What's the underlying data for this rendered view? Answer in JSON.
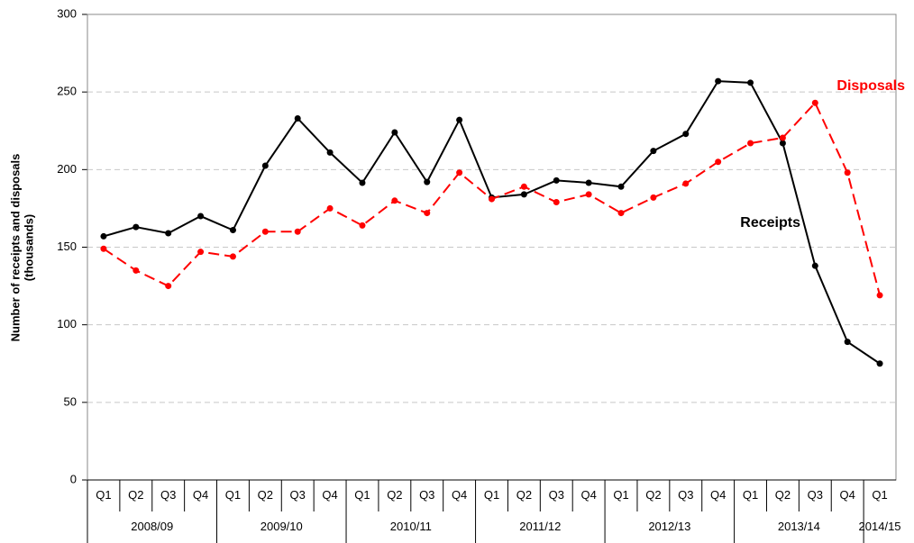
{
  "chart_data": {
    "type": "line",
    "ylabel": [
      "Number of receipts and disposals",
      "(thousands)"
    ],
    "groups": [
      {
        "label": "2008/09",
        "categories": [
          "Q1",
          "Q2",
          "Q3",
          "Q4"
        ]
      },
      {
        "label": "2009/10",
        "categories": [
          "Q1",
          "Q2",
          "Q3",
          "Q4"
        ]
      },
      {
        "label": "2010/11",
        "categories": [
          "Q1",
          "Q2",
          "Q3",
          "Q4"
        ]
      },
      {
        "label": "2011/12",
        "categories": [
          "Q1",
          "Q2",
          "Q3",
          "Q4"
        ]
      },
      {
        "label": "2012/13",
        "categories": [
          "Q1",
          "Q2",
          "Q3",
          "Q4"
        ]
      },
      {
        "label": "2013/14",
        "categories": [
          "Q1",
          "Q2",
          "Q3",
          "Q4"
        ]
      },
      {
        "label": "2014/15",
        "categories": [
          "Q1"
        ]
      }
    ],
    "series": [
      {
        "name": "Receipts",
        "color": "#000000",
        "dashed": false,
        "values": [
          157,
          163,
          159,
          170,
          161,
          202.5,
          233,
          211,
          191.5,
          224,
          192,
          232,
          182,
          184,
          193,
          191.5,
          189,
          212,
          223,
          257,
          256,
          217,
          138,
          89,
          75
        ]
      },
      {
        "name": "Disposals",
        "color": "#ff0000",
        "dashed": true,
        "values": [
          149,
          135,
          125,
          147,
          144,
          160,
          160,
          175,
          164,
          180,
          172,
          198,
          181,
          189,
          179,
          184,
          172,
          182,
          191,
          205,
          217,
          220.5,
          243,
          198,
          119
        ]
      }
    ],
    "ylim": [
      0,
      300
    ],
    "yticks": [
      0,
      50,
      100,
      150,
      200,
      250,
      300
    ],
    "grid": true
  }
}
